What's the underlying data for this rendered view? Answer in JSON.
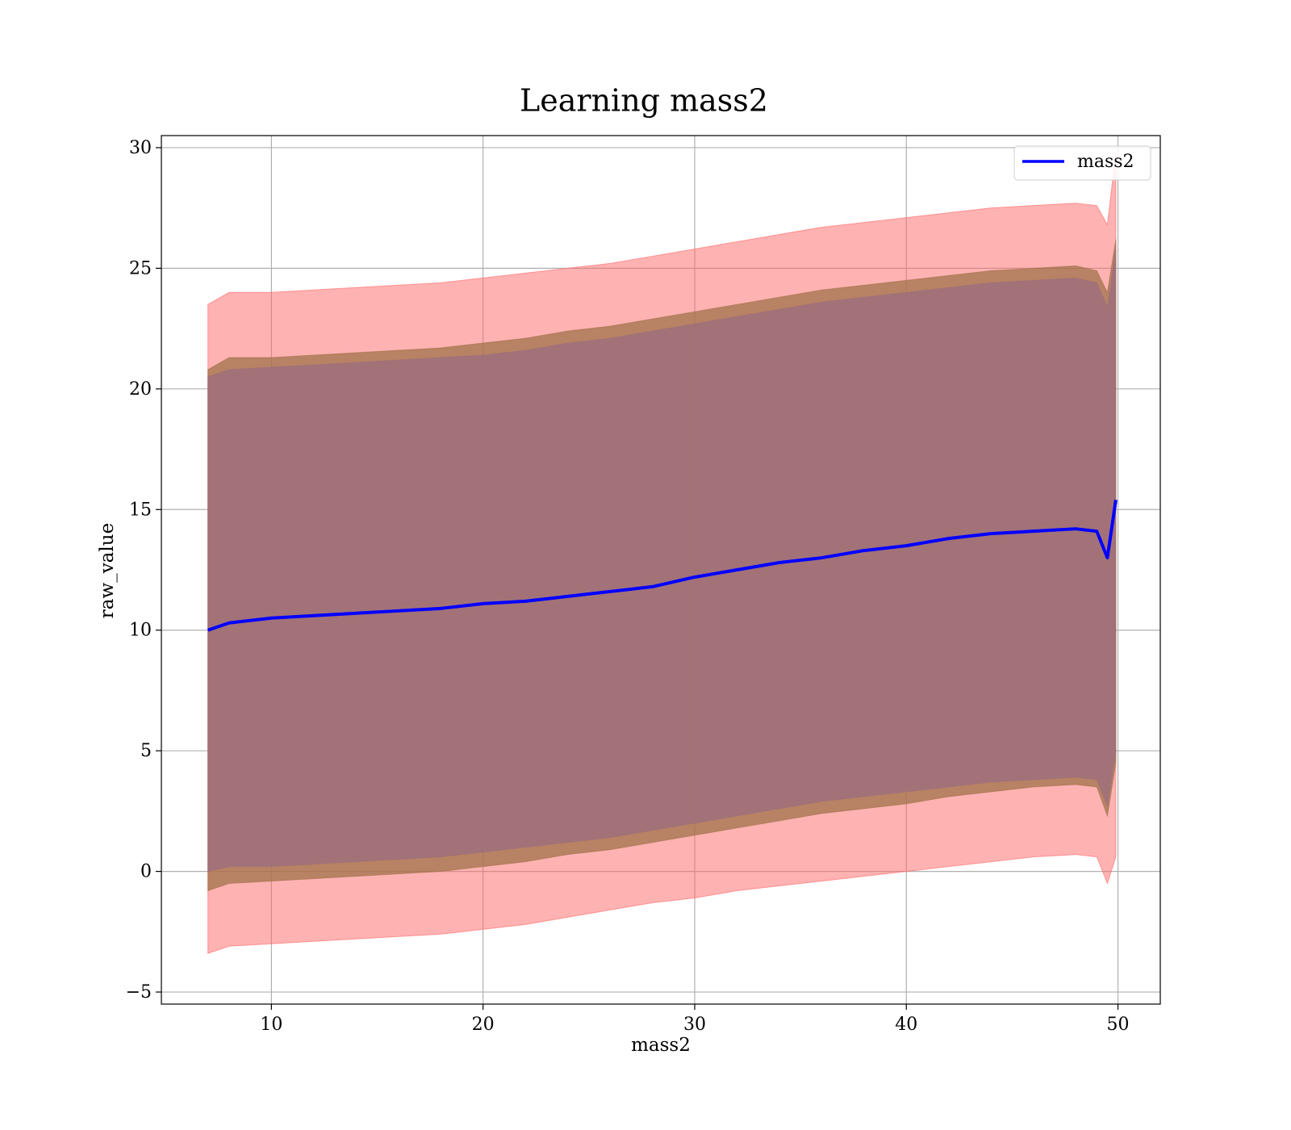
{
  "chart_data": {
    "type": "area",
    "title": "Learning mass2",
    "xlabel": "mass2",
    "ylabel": "raw_value",
    "xlim": [
      4.8,
      52.0
    ],
    "ylim": [
      -5.5,
      30.5
    ],
    "x_ticks": [
      10,
      20,
      30,
      40,
      50
    ],
    "x_tick_labels": [
      "10",
      "20",
      "30",
      "40",
      "50"
    ],
    "y_ticks": [
      -5,
      0,
      5,
      10,
      15,
      20,
      25,
      30
    ],
    "y_tick_labels": [
      "−5",
      "0",
      "5",
      "10",
      "15",
      "20",
      "25",
      "30"
    ],
    "grid": true,
    "legend": {
      "position": "top-right",
      "entries": [
        "mass2"
      ]
    },
    "x": [
      7.0,
      8.0,
      10.0,
      12.0,
      14.0,
      16.0,
      18.0,
      20.0,
      22.0,
      24.0,
      26.0,
      28.0,
      30.0,
      32.0,
      34.0,
      36.0,
      38.0,
      40.0,
      42.0,
      44.0,
      46.0,
      48.0,
      49.0,
      49.5,
      49.9
    ],
    "series": [
      {
        "name": "mass2",
        "role": "mean",
        "color": "#0000ff",
        "values": [
          10.0,
          10.3,
          10.5,
          10.6,
          10.7,
          10.8,
          10.9,
          11.1,
          11.2,
          11.4,
          11.6,
          11.8,
          12.2,
          12.5,
          12.8,
          13.0,
          13.3,
          13.5,
          13.8,
          14.0,
          14.1,
          14.2,
          14.1,
          13.0,
          15.4
        ]
      },
      {
        "role": "band-outer",
        "color": "#ff6666",
        "lower": [
          -3.4,
          -3.1,
          -3.0,
          -2.9,
          -2.8,
          -2.7,
          -2.6,
          -2.4,
          -2.2,
          -1.9,
          -1.6,
          -1.3,
          -1.1,
          -0.8,
          -0.6,
          -0.4,
          -0.2,
          0.0,
          0.2,
          0.4,
          0.6,
          0.7,
          0.6,
          -0.5,
          0.6
        ],
        "upper": [
          23.5,
          24.0,
          24.0,
          24.1,
          24.2,
          24.3,
          24.4,
          24.6,
          24.8,
          25.0,
          25.2,
          25.5,
          25.8,
          26.1,
          26.4,
          26.7,
          26.9,
          27.1,
          27.3,
          27.5,
          27.6,
          27.7,
          27.6,
          26.8,
          29.8
        ]
      },
      {
        "role": "band-middle",
        "color": "#a0724a",
        "lower": [
          -0.8,
          -0.5,
          -0.4,
          -0.3,
          -0.2,
          -0.1,
          0.0,
          0.2,
          0.4,
          0.7,
          0.9,
          1.2,
          1.5,
          1.8,
          2.1,
          2.4,
          2.6,
          2.8,
          3.1,
          3.3,
          3.5,
          3.6,
          3.5,
          2.3,
          4.5
        ],
        "upper": [
          20.8,
          21.3,
          21.3,
          21.4,
          21.5,
          21.6,
          21.7,
          21.9,
          22.1,
          22.4,
          22.6,
          22.9,
          23.2,
          23.5,
          23.8,
          24.1,
          24.3,
          24.5,
          24.7,
          24.9,
          25.0,
          25.1,
          24.9,
          24.0,
          26.2
        ]
      },
      {
        "role": "band-inner",
        "color": "#a0707a",
        "lower": [
          0.0,
          0.2,
          0.2,
          0.3,
          0.4,
          0.5,
          0.6,
          0.8,
          1.0,
          1.2,
          1.4,
          1.7,
          2.0,
          2.3,
          2.6,
          2.9,
          3.1,
          3.3,
          3.5,
          3.7,
          3.8,
          3.9,
          3.8,
          2.7,
          4.9
        ],
        "upper": [
          20.5,
          20.8,
          20.9,
          21.0,
          21.1,
          21.2,
          21.3,
          21.4,
          21.6,
          21.9,
          22.1,
          22.4,
          22.7,
          23.0,
          23.3,
          23.6,
          23.8,
          24.0,
          24.2,
          24.4,
          24.5,
          24.6,
          24.4,
          23.4,
          25.8
        ]
      }
    ]
  }
}
